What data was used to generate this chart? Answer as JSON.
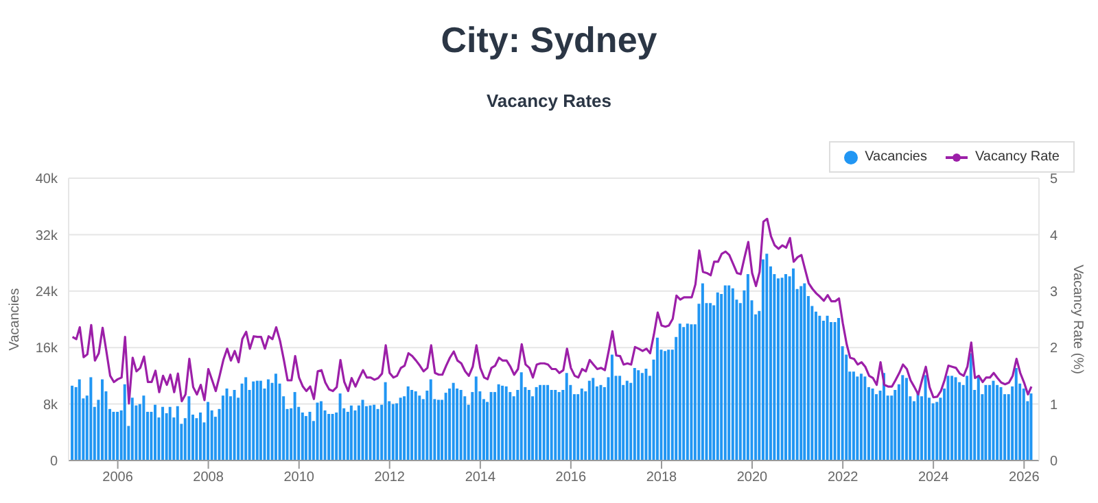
{
  "chart_data": {
    "type": "bar",
    "title": "City: Sydney",
    "subtitle": "Vacancy Rates",
    "ylabel": "Vacancies",
    "y2label": "Vacancy Rate (%)",
    "x": [
      "2005-01",
      "2005-02",
      "2005-03",
      "2005-04",
      "2005-05",
      "2005-06",
      "2005-07",
      "2005-08",
      "2005-09",
      "2005-10",
      "2005-11",
      "2005-12",
      "2006-01",
      "2006-02",
      "2006-03",
      "2006-04",
      "2006-05",
      "2006-06",
      "2006-07",
      "2006-08",
      "2006-09",
      "2006-10",
      "2006-11",
      "2006-12",
      "2007-01",
      "2007-02",
      "2007-03",
      "2007-04",
      "2007-05",
      "2007-06",
      "2007-07",
      "2007-08",
      "2007-09",
      "2007-10",
      "2007-11",
      "2007-12",
      "2008-01",
      "2008-02",
      "2008-03",
      "2008-04",
      "2008-05",
      "2008-06",
      "2008-07",
      "2008-08",
      "2008-09",
      "2008-10",
      "2008-11",
      "2008-12",
      "2009-01",
      "2009-02",
      "2009-03",
      "2009-04",
      "2009-05",
      "2009-06",
      "2009-07",
      "2009-08",
      "2009-09",
      "2009-10",
      "2009-11",
      "2009-12",
      "2010-01",
      "2010-02",
      "2010-03",
      "2010-04",
      "2010-05",
      "2010-06",
      "2010-07",
      "2010-08",
      "2010-09",
      "2010-10",
      "2010-11",
      "2010-12",
      "2011-01",
      "2011-02",
      "2011-03",
      "2011-04",
      "2011-05",
      "2011-06",
      "2011-07",
      "2011-08",
      "2011-09",
      "2011-10",
      "2011-11",
      "2011-12",
      "2012-01",
      "2012-02",
      "2012-03",
      "2012-04",
      "2012-05",
      "2012-06",
      "2012-07",
      "2012-08",
      "2012-09",
      "2012-10",
      "2012-11",
      "2012-12",
      "2013-01",
      "2013-02",
      "2013-03",
      "2013-04",
      "2013-05",
      "2013-06",
      "2013-07",
      "2013-08",
      "2013-09",
      "2013-10",
      "2013-11",
      "2013-12",
      "2014-01",
      "2014-02",
      "2014-03",
      "2014-04",
      "2014-05",
      "2014-06",
      "2014-07",
      "2014-08",
      "2014-09",
      "2014-10",
      "2014-11",
      "2014-12",
      "2015-01",
      "2015-02",
      "2015-03",
      "2015-04",
      "2015-05",
      "2015-06",
      "2015-07",
      "2015-08",
      "2015-09",
      "2015-10",
      "2015-11",
      "2015-12",
      "2016-01",
      "2016-02",
      "2016-03",
      "2016-04",
      "2016-05",
      "2016-06",
      "2016-07",
      "2016-08",
      "2016-09",
      "2016-10",
      "2016-11",
      "2016-12",
      "2017-01",
      "2017-02",
      "2017-03",
      "2017-04",
      "2017-05",
      "2017-06",
      "2017-07",
      "2017-08",
      "2017-09",
      "2017-10",
      "2017-11",
      "2017-12",
      "2018-01",
      "2018-02",
      "2018-03",
      "2018-04",
      "2018-05",
      "2018-06",
      "2018-07",
      "2018-08",
      "2018-09",
      "2018-10",
      "2018-11",
      "2018-12",
      "2019-01",
      "2019-02",
      "2019-03",
      "2019-04",
      "2019-05",
      "2019-06",
      "2019-07",
      "2019-08",
      "2019-09",
      "2019-10",
      "2019-11",
      "2019-12",
      "2020-01",
      "2020-02",
      "2020-03",
      "2020-04",
      "2020-05",
      "2020-06",
      "2020-07",
      "2020-08",
      "2020-09",
      "2020-10",
      "2020-11",
      "2020-12",
      "2021-01",
      "2021-02",
      "2021-03",
      "2021-04",
      "2021-05",
      "2021-06",
      "2021-07",
      "2021-08",
      "2021-09",
      "2021-10",
      "2021-11",
      "2021-12",
      "2022-01",
      "2022-02",
      "2022-03",
      "2022-04",
      "2022-05",
      "2022-06",
      "2022-07",
      "2022-08",
      "2022-09",
      "2022-10",
      "2022-11",
      "2022-12",
      "2023-01",
      "2023-02",
      "2023-03",
      "2023-04",
      "2023-05",
      "2023-06",
      "2023-07",
      "2023-08",
      "2023-09",
      "2023-10",
      "2023-11",
      "2023-12",
      "2024-01",
      "2024-02",
      "2024-03",
      "2024-04",
      "2024-05",
      "2024-06",
      "2024-07",
      "2024-08",
      "2024-09",
      "2024-10",
      "2024-11",
      "2024-12",
      "2025-01",
      "2025-02",
      "2025-03",
      "2025-04",
      "2025-05",
      "2025-06",
      "2025-07",
      "2025-08",
      "2025-09",
      "2025-10",
      "2025-11",
      "2025-12",
      "2026-01",
      "2026-02",
      "2026-03"
    ],
    "series": [
      {
        "name": "Vacancies",
        "color": "#2196f3",
        "values": [
          10600,
          10400,
          11500,
          8800,
          9200,
          11800,
          7600,
          8600,
          11500,
          9800,
          7300,
          6900,
          6900,
          7100,
          10800,
          4900,
          8900,
          7800,
          8000,
          9200,
          6900,
          6900,
          7900,
          6100,
          7600,
          6700,
          7600,
          6100,
          7700,
          5200,
          6000,
          9100,
          6500,
          6000,
          6800,
          5400,
          8300,
          7100,
          6200,
          7300,
          9200,
          10200,
          9100,
          10000,
          8900,
          10900,
          11800,
          10000,
          11200,
          11300,
          11300,
          10200,
          11500,
          11000,
          12300,
          10900,
          9100,
          7300,
          7400,
          9700,
          7600,
          6800,
          6300,
          6900,
          5600,
          8200,
          8400,
          7100,
          6600,
          6600,
          6800,
          9500,
          7400,
          6900,
          7800,
          7100,
          7800,
          8600,
          7700,
          7800,
          7900,
          7300,
          7900,
          11100,
          8400,
          8000,
          8100,
          8900,
          9100,
          10500,
          10000,
          9800,
          9200,
          8700,
          9900,
          11500,
          8700,
          8600,
          8600,
          9600,
          10200,
          11000,
          10200,
          10000,
          9100,
          7900,
          9700,
          11900,
          9800,
          8700,
          8300,
          9700,
          9700,
          10800,
          10600,
          10500,
          9700,
          9100,
          10000,
          12500,
          10400,
          10000,
          9100,
          10400,
          10700,
          10700,
          10700,
          10000,
          10000,
          9700,
          10000,
          12400,
          10700,
          9400,
          9400,
          10200,
          9800,
          11300,
          11700,
          10500,
          10700,
          10400,
          11800,
          15000,
          12000,
          12000,
          10700,
          11300,
          11000,
          13100,
          12800,
          12400,
          13000,
          12000,
          14300,
          17400,
          15700,
          15500,
          15700,
          15700,
          17500,
          19400,
          18900,
          19400,
          19300,
          19300,
          22200,
          25100,
          22300,
          22300,
          22000,
          23800,
          23600,
          24800,
          24800,
          24400,
          22800,
          22300,
          24100,
          26400,
          22700,
          20700,
          21200,
          28500,
          29300,
          27500,
          26400,
          25800,
          25900,
          26400,
          26100,
          27200,
          24300,
          24700,
          25100,
          23300,
          21900,
          21100,
          20500,
          19800,
          20500,
          19600,
          19600,
          20200,
          16200,
          15000,
          12600,
          12600,
          11900,
          12300,
          11900,
          10400,
          10200,
          9400,
          9900,
          12400,
          9200,
          9200,
          10000,
          10800,
          12100,
          11700,
          9100,
          8400,
          9700,
          9100,
          12100,
          8900,
          8100,
          8300,
          8900,
          10200,
          12000,
          12000,
          11800,
          11100,
          10700,
          12000,
          15200,
          10000,
          12000,
          9400,
          10700,
          10700,
          11300,
          10700,
          10400,
          9400,
          9400,
          10500,
          13100,
          10900,
          10200,
          8400,
          9500
        ]
      },
      {
        "name": "Vacancy Rate",
        "type": "line",
        "axis": "y2",
        "color": "#9c1fa8",
        "values": [
          2.19,
          2.15,
          2.36,
          1.83,
          1.88,
          2.4,
          1.77,
          1.9,
          2.35,
          1.94,
          1.5,
          1.39,
          1.44,
          1.47,
          2.19,
          1.01,
          1.82,
          1.58,
          1.64,
          1.84,
          1.39,
          1.39,
          1.59,
          1.21,
          1.5,
          1.34,
          1.52,
          1.21,
          1.54,
          1.05,
          1.17,
          1.8,
          1.3,
          1.17,
          1.34,
          1.07,
          1.62,
          1.42,
          1.23,
          1.5,
          1.78,
          1.98,
          1.77,
          1.94,
          1.74,
          2.15,
          2.28,
          1.98,
          2.2,
          2.19,
          2.19,
          1.98,
          2.2,
          2.15,
          2.36,
          2.12,
          1.78,
          1.42,
          1.42,
          1.85,
          1.47,
          1.31,
          1.23,
          1.31,
          1.09,
          1.58,
          1.6,
          1.38,
          1.26,
          1.23,
          1.3,
          1.78,
          1.39,
          1.23,
          1.46,
          1.31,
          1.46,
          1.6,
          1.47,
          1.47,
          1.43,
          1.46,
          1.54,
          2.04,
          1.55,
          1.47,
          1.5,
          1.64,
          1.68,
          1.9,
          1.85,
          1.77,
          1.68,
          1.58,
          1.64,
          2.04,
          1.55,
          1.52,
          1.52,
          1.68,
          1.82,
          1.93,
          1.77,
          1.72,
          1.58,
          1.5,
          1.66,
          2.04,
          1.64,
          1.47,
          1.44,
          1.64,
          1.68,
          1.82,
          1.77,
          1.77,
          1.66,
          1.52,
          1.62,
          2.06,
          1.7,
          1.64,
          1.47,
          1.7,
          1.72,
          1.72,
          1.7,
          1.62,
          1.62,
          1.55,
          1.6,
          1.98,
          1.64,
          1.5,
          1.47,
          1.62,
          1.58,
          1.78,
          1.7,
          1.62,
          1.64,
          1.6,
          1.94,
          2.29,
          1.86,
          1.85,
          1.7,
          1.72,
          1.7,
          2.01,
          1.98,
          1.94,
          1.98,
          1.9,
          2.24,
          2.62,
          2.39,
          2.37,
          2.39,
          2.51,
          2.92,
          2.85,
          2.89,
          2.89,
          2.89,
          3.12,
          3.72,
          3.34,
          3.32,
          3.28,
          3.52,
          3.52,
          3.66,
          3.7,
          3.64,
          3.48,
          3.32,
          3.3,
          3.6,
          3.87,
          3.32,
          3.09,
          3.34,
          4.23,
          4.28,
          3.97,
          3.81,
          3.75,
          3.81,
          3.77,
          3.94,
          3.52,
          3.6,
          3.64,
          3.4,
          3.14,
          3.04,
          2.96,
          2.9,
          2.83,
          2.93,
          2.82,
          2.82,
          2.87,
          2.43,
          2.06,
          1.82,
          1.8,
          1.7,
          1.74,
          1.66,
          1.5,
          1.46,
          1.34,
          1.74,
          1.34,
          1.31,
          1.31,
          1.42,
          1.55,
          1.7,
          1.62,
          1.42,
          1.3,
          1.17,
          1.42,
          1.66,
          1.3,
          1.12,
          1.13,
          1.23,
          1.43,
          1.68,
          1.66,
          1.64,
          1.54,
          1.5,
          1.66,
          2.09,
          1.46,
          1.5,
          1.39,
          1.47,
          1.47,
          1.55,
          1.46,
          1.38,
          1.35,
          1.38,
          1.5,
          1.8,
          1.55,
          1.38,
          1.17,
          1.31
        ]
      }
    ],
    "xlim": [
      "2004-12",
      "2026-05"
    ],
    "xticks": [
      "2006",
      "2008",
      "2010",
      "2012",
      "2014",
      "2016",
      "2018",
      "2020",
      "2022",
      "2024",
      "2026"
    ],
    "ylim": [
      0,
      40000
    ],
    "yticks": [
      0,
      {
        "value": 8000,
        "label": "8k"
      },
      {
        "value": 16000,
        "label": "16k"
      },
      {
        "value": 24000,
        "label": "24k"
      },
      {
        "value": 32000,
        "label": "32k"
      },
      {
        "value": 40000,
        "label": "40k"
      }
    ],
    "y2lim": [
      0,
      5
    ],
    "y2ticks": [
      0,
      1,
      2,
      3,
      4,
      5
    ],
    "grid": "y",
    "legend": "top right"
  }
}
